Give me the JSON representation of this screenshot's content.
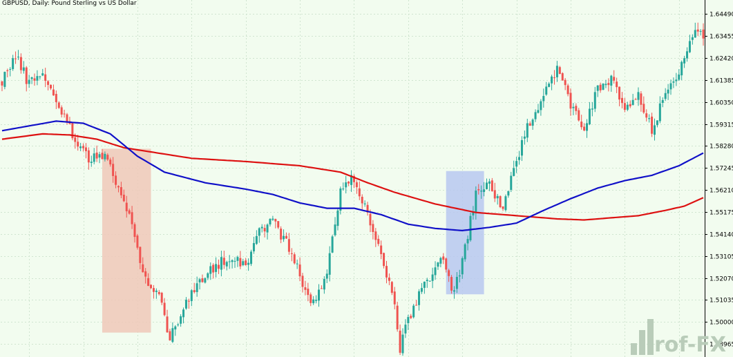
{
  "title": "GBPUSD, Daily:  Pound Sterling vs US Dollar",
  "watermark": "rof-FX",
  "colors": {
    "background": "#f2fcef",
    "grid": "#cfe4cf",
    "bull": "#26a69a",
    "bear": "#ef5350",
    "ma_fast": "#1010c8",
    "ma_slow": "#dd1111",
    "highlight_bear": "#f0c8b8",
    "highlight_bull": "#b8c8f0"
  },
  "chart_data": {
    "type": "candlestick",
    "title": "GBPUSD, Daily:  Pound Sterling vs US Dollar",
    "ylim": [
      1.4835,
      1.6515
    ],
    "y_ticks": [
      "1.64490",
      "1.63455",
      "1.62420",
      "1.61385",
      "1.60350",
      "1.59315",
      "1.58280",
      "1.57245",
      "1.56210",
      "1.55175",
      "1.54140",
      "1.53105",
      "1.52070",
      "1.51035",
      "1.50000",
      "1.48965"
    ],
    "grid": true,
    "anchors": [
      [
        0,
        1.614
      ],
      [
        5,
        1.625
      ],
      [
        10,
        1.612
      ],
      [
        14,
        1.618
      ],
      [
        20,
        1.605
      ],
      [
        26,
        1.588
      ],
      [
        33,
        1.576
      ],
      [
        38,
        1.58
      ],
      [
        42,
        1.566
      ],
      [
        48,
        1.545
      ],
      [
        53,
        1.52
      ],
      [
        58,
        1.512
      ],
      [
        62,
        1.493
      ],
      [
        67,
        1.507
      ],
      [
        73,
        1.518
      ],
      [
        79,
        1.527
      ],
      [
        85,
        1.531
      ],
      [
        90,
        1.527
      ],
      [
        95,
        1.543
      ],
      [
        100,
        1.548
      ],
      [
        105,
        1.537
      ],
      [
        110,
        1.522
      ],
      [
        115,
        1.508
      ],
      [
        120,
        1.523
      ],
      [
        125,
        1.562
      ],
      [
        130,
        1.568
      ],
      [
        135,
        1.551
      ],
      [
        140,
        1.531
      ],
      [
        145,
        1.508
      ],
      [
        147,
        1.488
      ],
      [
        152,
        1.508
      ],
      [
        157,
        1.52
      ],
      [
        162,
        1.53
      ],
      [
        167,
        1.514
      ],
      [
        170,
        1.528
      ],
      [
        175,
        1.56
      ],
      [
        180,
        1.565
      ],
      [
        185,
        1.553
      ],
      [
        190,
        1.575
      ],
      [
        195,
        1.595
      ],
      [
        200,
        1.607
      ],
      [
        205,
        1.62
      ],
      [
        210,
        1.602
      ],
      [
        215,
        1.592
      ],
      [
        220,
        1.609
      ],
      [
        225,
        1.614
      ],
      [
        230,
        1.6
      ],
      [
        235,
        1.606
      ],
      [
        240,
        1.59
      ],
      [
        245,
        1.607
      ],
      [
        250,
        1.619
      ],
      [
        255,
        1.635
      ],
      [
        259,
        1.634
      ]
    ],
    "ma_fast": [
      [
        0,
        1.59
      ],
      [
        20,
        1.5945
      ],
      [
        30,
        1.5935
      ],
      [
        40,
        1.5885
      ],
      [
        50,
        1.578
      ],
      [
        60,
        1.5705
      ],
      [
        75,
        1.5655
      ],
      [
        90,
        1.5625
      ],
      [
        100,
        1.56
      ],
      [
        110,
        1.556
      ],
      [
        120,
        1.5535
      ],
      [
        130,
        1.5535
      ],
      [
        140,
        1.5505
      ],
      [
        150,
        1.546
      ],
      [
        160,
        1.544
      ],
      [
        170,
        1.543
      ],
      [
        180,
        1.5445
      ],
      [
        190,
        1.5465
      ],
      [
        200,
        1.5525
      ],
      [
        210,
        1.558
      ],
      [
        220,
        1.563
      ],
      [
        230,
        1.5665
      ],
      [
        240,
        1.569
      ],
      [
        250,
        1.5735
      ],
      [
        259,
        1.5795
      ]
    ],
    "ma_slow": [
      [
        0,
        1.586
      ],
      [
        15,
        1.5885
      ],
      [
        25,
        1.588
      ],
      [
        35,
        1.586
      ],
      [
        45,
        1.582
      ],
      [
        55,
        1.58
      ],
      [
        70,
        1.577
      ],
      [
        90,
        1.5755
      ],
      [
        110,
        1.5735
      ],
      [
        125,
        1.5705
      ],
      [
        135,
        1.5655
      ],
      [
        145,
        1.561
      ],
      [
        160,
        1.5555
      ],
      [
        175,
        1.5515
      ],
      [
        190,
        1.55
      ],
      [
        205,
        1.5485
      ],
      [
        215,
        1.548
      ],
      [
        225,
        1.549
      ],
      [
        235,
        1.55
      ],
      [
        245,
        1.5525
      ],
      [
        252,
        1.5545
      ],
      [
        259,
        1.5585
      ]
    ],
    "highlight_zones": [
      {
        "x0": 37.5,
        "x1": 55.5,
        "y0": 1.495,
        "y1": 1.5815,
        "kind": "bear"
      },
      {
        "x0": 164.5,
        "x1": 178.5,
        "y0": 1.513,
        "y1": 1.571,
        "kind": "bull"
      }
    ]
  }
}
